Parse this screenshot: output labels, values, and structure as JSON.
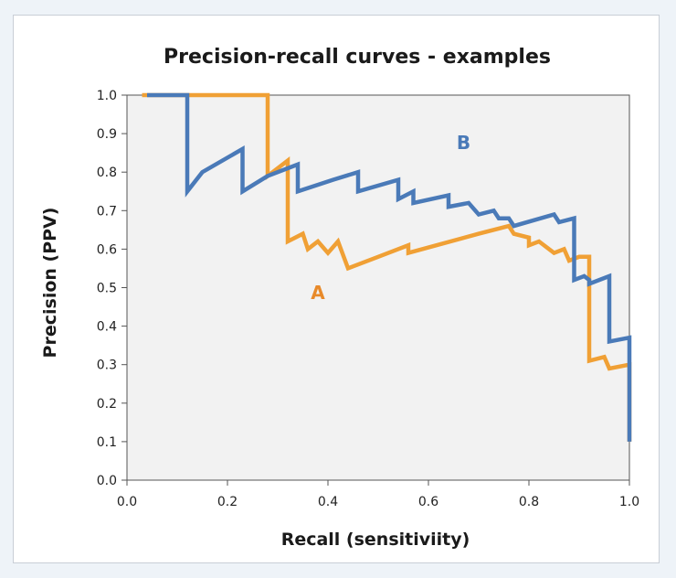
{
  "chart_data": {
    "type": "line",
    "title": "Precision-recall curves - examples",
    "xlabel": "Recall (sensitiviity)",
    "ylabel": "Precision (PPV)",
    "xlim": [
      0.0,
      1.0
    ],
    "ylim": [
      0.0,
      1.0
    ],
    "xticks": [
      "0.0",
      "0.2",
      "0.4",
      "0.6",
      "0.8",
      "1.0"
    ],
    "yticks": [
      "0.0",
      "0.1",
      "0.2",
      "0.3",
      "0.4",
      "0.5",
      "0.6",
      "0.7",
      "0.8",
      "0.9",
      "1.0"
    ],
    "grid": false,
    "plot_background": "#f2f2f2",
    "series": [
      {
        "name": "A",
        "color": "#f0a035",
        "points": [
          [
            0.03,
            1.0
          ],
          [
            0.28,
            1.0
          ],
          [
            0.28,
            0.79
          ],
          [
            0.32,
            0.83
          ],
          [
            0.32,
            0.62
          ],
          [
            0.35,
            0.64
          ],
          [
            0.36,
            0.6
          ],
          [
            0.38,
            0.62
          ],
          [
            0.4,
            0.59
          ],
          [
            0.42,
            0.62
          ],
          [
            0.44,
            0.55
          ],
          [
            0.5,
            0.58
          ],
          [
            0.56,
            0.61
          ],
          [
            0.56,
            0.59
          ],
          [
            0.7,
            0.64
          ],
          [
            0.76,
            0.66
          ],
          [
            0.77,
            0.64
          ],
          [
            0.8,
            0.63
          ],
          [
            0.8,
            0.61
          ],
          [
            0.82,
            0.62
          ],
          [
            0.85,
            0.59
          ],
          [
            0.87,
            0.6
          ],
          [
            0.88,
            0.57
          ],
          [
            0.9,
            0.58
          ],
          [
            0.92,
            0.58
          ],
          [
            0.92,
            0.31
          ],
          [
            0.95,
            0.32
          ],
          [
            0.96,
            0.29
          ],
          [
            1.0,
            0.3
          ],
          [
            1.0,
            0.1
          ]
        ]
      },
      {
        "name": "B",
        "color": "#4a7ab8",
        "points": [
          [
            0.04,
            1.0
          ],
          [
            0.12,
            1.0
          ],
          [
            0.12,
            0.75
          ],
          [
            0.15,
            0.8
          ],
          [
            0.23,
            0.86
          ],
          [
            0.23,
            0.75
          ],
          [
            0.28,
            0.79
          ],
          [
            0.34,
            0.82
          ],
          [
            0.34,
            0.75
          ],
          [
            0.41,
            0.78
          ],
          [
            0.46,
            0.8
          ],
          [
            0.46,
            0.75
          ],
          [
            0.54,
            0.78
          ],
          [
            0.54,
            0.73
          ],
          [
            0.57,
            0.75
          ],
          [
            0.57,
            0.72
          ],
          [
            0.64,
            0.74
          ],
          [
            0.64,
            0.71
          ],
          [
            0.68,
            0.72
          ],
          [
            0.7,
            0.69
          ],
          [
            0.73,
            0.7
          ],
          [
            0.74,
            0.68
          ],
          [
            0.76,
            0.68
          ],
          [
            0.77,
            0.66
          ],
          [
            0.85,
            0.69
          ],
          [
            0.86,
            0.67
          ],
          [
            0.89,
            0.68
          ],
          [
            0.89,
            0.52
          ],
          [
            0.91,
            0.53
          ],
          [
            0.92,
            0.52
          ],
          [
            0.92,
            0.51
          ],
          [
            0.96,
            0.53
          ],
          [
            0.96,
            0.36
          ],
          [
            1.0,
            0.37
          ],
          [
            1.0,
            0.1
          ]
        ]
      }
    ],
    "labels": [
      {
        "text": "B",
        "x": 0.67,
        "y": 0.86,
        "color": "#4a7ab8"
      },
      {
        "text": "A",
        "x": 0.38,
        "y": 0.47,
        "color": "#e88a2a"
      }
    ]
  }
}
